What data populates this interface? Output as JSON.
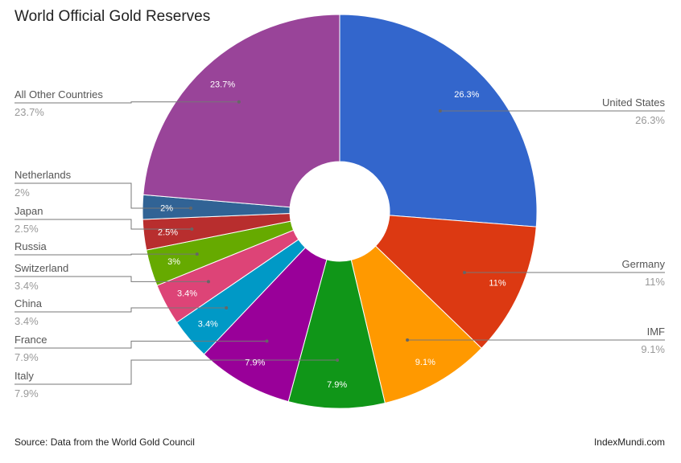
{
  "chart_data": {
    "type": "pie",
    "donut": true,
    "title": "World Official Gold Reserves",
    "slices": [
      {
        "label": "United States",
        "value": 26.3,
        "display": "26.3%",
        "color": "#3366cc"
      },
      {
        "label": "Germany",
        "value": 11,
        "display": "11%",
        "color": "#dc3912"
      },
      {
        "label": "IMF",
        "value": 9.1,
        "display": "9.1%",
        "color": "#ff9900"
      },
      {
        "label": "Italy",
        "value": 7.9,
        "display": "7.9%",
        "color": "#109618"
      },
      {
        "label": "France",
        "value": 7.9,
        "display": "7.9%",
        "color": "#990099"
      },
      {
        "label": "China",
        "value": 3.4,
        "display": "3.4%",
        "color": "#0099c6"
      },
      {
        "label": "Switzerland",
        "value": 3.4,
        "display": "3.4%",
        "color": "#dd4477"
      },
      {
        "label": "Russia",
        "value": 3,
        "display": "3%",
        "color": "#66aa00",
        "legend_value_hidden": true
      },
      {
        "label": "Japan",
        "value": 2.5,
        "display": "2.5%",
        "color": "#b82e2e"
      },
      {
        "label": "Netherlands",
        "value": 2,
        "display": "2%",
        "color": "#316395"
      },
      {
        "label": "All Other Countries",
        "value": 23.7,
        "display": "23.7%",
        "color": "#994499"
      }
    ],
    "legend": "labeled leader lines"
  },
  "footer": {
    "source": "Source: Data from the World Gold Council",
    "brand": "IndexMundi.com"
  }
}
